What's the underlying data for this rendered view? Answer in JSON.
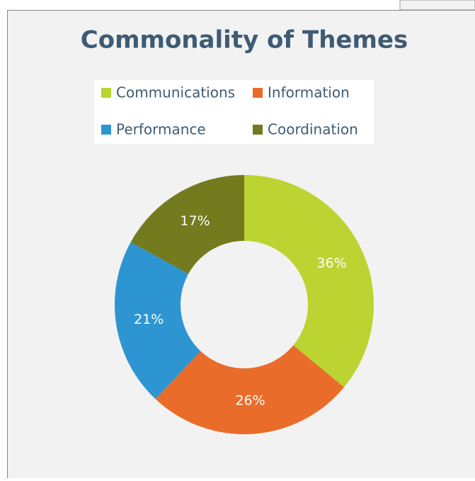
{
  "chart_data": {
    "type": "donut",
    "title": "Commonality of Themes",
    "categories": [
      "Communications",
      "Information",
      "Performance",
      "Coordination"
    ],
    "values": [
      36,
      26,
      21,
      17
    ],
    "value_labels": [
      "36%",
      "26%",
      "21%",
      "17%"
    ],
    "colors": [
      "#bcd431",
      "#e96c2b",
      "#2e95d3",
      "#737b1e"
    ]
  }
}
